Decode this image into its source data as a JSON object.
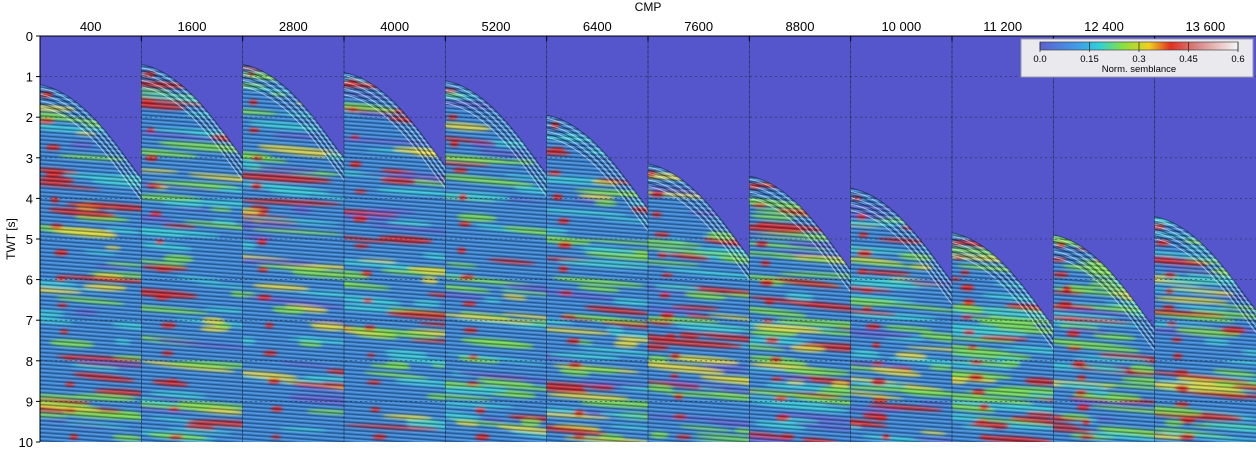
{
  "chart_data": {
    "type": "heatmap",
    "title": "",
    "xlabel": "CMP",
    "ylabel": "TWT [s]",
    "x_tick_labels": [
      "400",
      "1600",
      "2800",
      "4000",
      "5200",
      "6400",
      "7600",
      "8800",
      "10 000",
      "11 200",
      "12 400",
      "13 600"
    ],
    "y_tick_labels": [
      "0",
      "1",
      "2",
      "3",
      "4",
      "5",
      "6",
      "7",
      "8",
      "9",
      "10"
    ],
    "ylim": [
      0,
      10
    ],
    "y_inverted": true,
    "grid": true,
    "panels": [
      {
        "cmp": "400",
        "first_break_twt": 1.2
      },
      {
        "cmp": "1600",
        "first_break_twt": 0.7
      },
      {
        "cmp": "2800",
        "first_break_twt": 0.7
      },
      {
        "cmp": "4000",
        "first_break_twt": 0.9
      },
      {
        "cmp": "5200",
        "first_break_twt": 1.1
      },
      {
        "cmp": "6400",
        "first_break_twt": 1.95
      },
      {
        "cmp": "7600",
        "first_break_twt": 3.15
      },
      {
        "cmp": "8800",
        "first_break_twt": 3.45
      },
      {
        "cmp": "10 000",
        "first_break_twt": 3.75
      },
      {
        "cmp": "11 200",
        "first_break_twt": 4.85
      },
      {
        "cmp": "12 400",
        "first_break_twt": 4.9
      },
      {
        "cmp": "13 600",
        "first_break_twt": 4.45
      }
    ],
    "colorbar": {
      "label": "Norm. semblance",
      "tick_labels": [
        "0.0",
        "0.15",
        "0.3",
        "0.45",
        "0.6"
      ],
      "range": [
        0.0,
        0.6
      ],
      "placement": "top-right"
    },
    "colors": {
      "background": "#5555cc",
      "low": "#5a61cf",
      "mid_low": "#35c8d8",
      "mid": "#78dc4a",
      "high": "#e8d838",
      "peak": "#d82020"
    }
  }
}
